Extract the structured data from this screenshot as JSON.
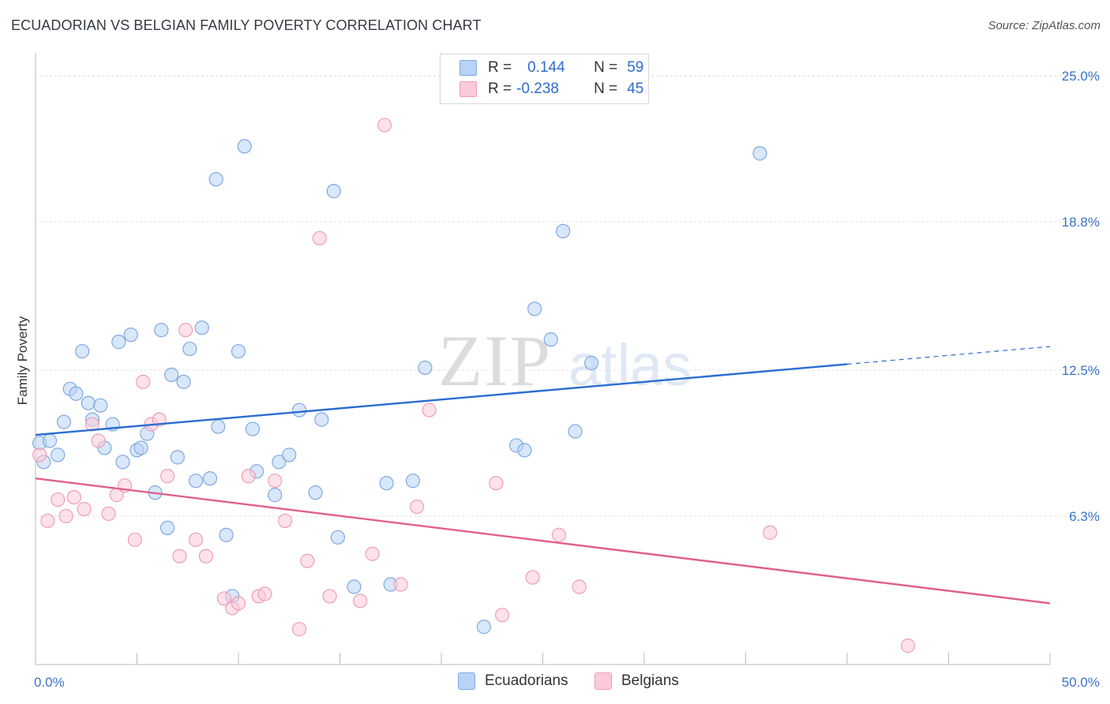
{
  "title": "ECUADORIAN VS BELGIAN FAMILY POVERTY CORRELATION CHART",
  "source": "Source: ZipAtlas.com",
  "watermark": {
    "zip": "ZIP",
    "atlas": "atlas"
  },
  "legend": {
    "rows": [
      {
        "r_label": "R =",
        "r_value": "0.144",
        "n_label": "N =",
        "n_value": "59"
      },
      {
        "r_label": "R =",
        "r_value": "-0.238",
        "n_label": "N =",
        "n_value": "45"
      }
    ]
  },
  "bottom_legend": {
    "ecuadorians": "Ecuadorians",
    "belgians": "Belgians"
  },
  "colors": {
    "blue_fill": "#b8d3f5",
    "blue_stroke": "#7fa9e0",
    "blue_line": "#2a6dd0",
    "pink_fill": "#fbcad8",
    "pink_stroke": "#ef9db7",
    "pink_line": "#e0608c",
    "tick_label": "#3a72c8"
  },
  "chart_data": {
    "type": "scatter",
    "title": "ECUADORIAN VS BELGIAN FAMILY POVERTY CORRELATION CHART",
    "xlabel": "",
    "ylabel": "Family Poverty",
    "xlim": [
      0,
      50
    ],
    "ylim": [
      0,
      25.8
    ],
    "x_tick_labels": [
      {
        "value": 0,
        "label": "0.0%"
      },
      {
        "value": 50,
        "label": "50.0%"
      }
    ],
    "y_ticks": [
      {
        "value": 6.3,
        "label": "6.3%"
      },
      {
        "value": 12.5,
        "label": "12.5%"
      },
      {
        "value": 18.8,
        "label": "18.8%"
      },
      {
        "value": 25.0,
        "label": "25.0%"
      }
    ],
    "series": [
      {
        "name": "Ecuadorians",
        "color": "blue",
        "points": [
          [
            0.2,
            9.4
          ],
          [
            0.4,
            8.6
          ],
          [
            0.7,
            9.5
          ],
          [
            1.1,
            8.9
          ],
          [
            1.4,
            10.3
          ],
          [
            1.7,
            11.7
          ],
          [
            2.0,
            11.5
          ],
          [
            2.3,
            13.3
          ],
          [
            2.6,
            11.1
          ],
          [
            2.8,
            10.4
          ],
          [
            3.2,
            11.0
          ],
          [
            3.4,
            9.2
          ],
          [
            3.8,
            10.2
          ],
          [
            4.1,
            13.7
          ],
          [
            4.3,
            8.6
          ],
          [
            4.7,
            14.0
          ],
          [
            5.0,
            9.1
          ],
          [
            5.2,
            9.2
          ],
          [
            5.5,
            9.8
          ],
          [
            5.9,
            7.3
          ],
          [
            6.2,
            14.2
          ],
          [
            6.5,
            5.8
          ],
          [
            6.7,
            12.3
          ],
          [
            7.0,
            8.8
          ],
          [
            7.3,
            12.0
          ],
          [
            7.6,
            13.4
          ],
          [
            7.9,
            7.8
          ],
          [
            8.2,
            14.3
          ],
          [
            8.6,
            7.9
          ],
          [
            9.0,
            10.1
          ],
          [
            9.4,
            5.5
          ],
          [
            9.7,
            2.9
          ],
          [
            10.0,
            13.3
          ],
          [
            10.3,
            22.0
          ],
          [
            10.7,
            10.0
          ],
          [
            10.9,
            8.2
          ],
          [
            11.8,
            7.2
          ],
          [
            12.0,
            8.6
          ],
          [
            12.5,
            8.9
          ],
          [
            13.0,
            10.8
          ],
          [
            13.8,
            7.3
          ],
          [
            14.1,
            10.4
          ],
          [
            14.7,
            20.1
          ],
          [
            14.9,
            5.4
          ],
          [
            15.7,
            3.3
          ],
          [
            17.3,
            7.7
          ],
          [
            17.5,
            3.4
          ],
          [
            18.6,
            7.8
          ],
          [
            19.2,
            12.6
          ],
          [
            22.1,
            1.6
          ],
          [
            23.7,
            9.3
          ],
          [
            24.1,
            9.1
          ],
          [
            24.6,
            15.1
          ],
          [
            25.4,
            13.8
          ],
          [
            26.0,
            18.4
          ],
          [
            26.6,
            9.9
          ],
          [
            27.4,
            12.8
          ],
          [
            35.7,
            21.7
          ],
          [
            8.9,
            20.6
          ]
        ]
      },
      {
        "name": "Belgians",
        "color": "pink",
        "points": [
          [
            0.2,
            8.9
          ],
          [
            0.6,
            6.1
          ],
          [
            1.1,
            7.0
          ],
          [
            1.5,
            6.3
          ],
          [
            1.9,
            7.1
          ],
          [
            2.4,
            6.6
          ],
          [
            2.8,
            10.2
          ],
          [
            3.1,
            9.5
          ],
          [
            3.6,
            6.4
          ],
          [
            4.0,
            7.2
          ],
          [
            4.4,
            7.6
          ],
          [
            4.9,
            5.3
          ],
          [
            5.3,
            12.0
          ],
          [
            5.7,
            10.2
          ],
          [
            6.1,
            10.4
          ],
          [
            6.5,
            8.0
          ],
          [
            7.1,
            4.6
          ],
          [
            7.4,
            14.2
          ],
          [
            7.9,
            5.3
          ],
          [
            8.4,
            4.6
          ],
          [
            9.3,
            2.8
          ],
          [
            9.7,
            2.4
          ],
          [
            10.0,
            2.6
          ],
          [
            10.5,
            8.0
          ],
          [
            11.0,
            2.9
          ],
          [
            11.3,
            3.0
          ],
          [
            11.8,
            7.8
          ],
          [
            12.3,
            6.1
          ],
          [
            13.0,
            1.5
          ],
          [
            13.4,
            4.4
          ],
          [
            14.0,
            18.1
          ],
          [
            14.5,
            2.9
          ],
          [
            16.0,
            2.7
          ],
          [
            16.6,
            4.7
          ],
          [
            17.2,
            22.9
          ],
          [
            18.0,
            3.4
          ],
          [
            18.8,
            6.7
          ],
          [
            19.4,
            10.8
          ],
          [
            22.7,
            7.7
          ],
          [
            23.0,
            2.1
          ],
          [
            24.5,
            3.7
          ],
          [
            25.8,
            5.5
          ],
          [
            26.8,
            3.3
          ],
          [
            36.2,
            5.6
          ],
          [
            43.0,
            0.8
          ]
        ]
      }
    ],
    "trendlines": [
      {
        "series": "Ecuadorians",
        "x0": 0,
        "y0": 9.75,
        "x1": 40,
        "y1": 12.75,
        "dashed_to_x": 50,
        "dashed_to_y": 13.5
      },
      {
        "series": "Belgians",
        "x0": 0,
        "y0": 7.9,
        "x1": 50,
        "y1": 2.6
      }
    ]
  }
}
